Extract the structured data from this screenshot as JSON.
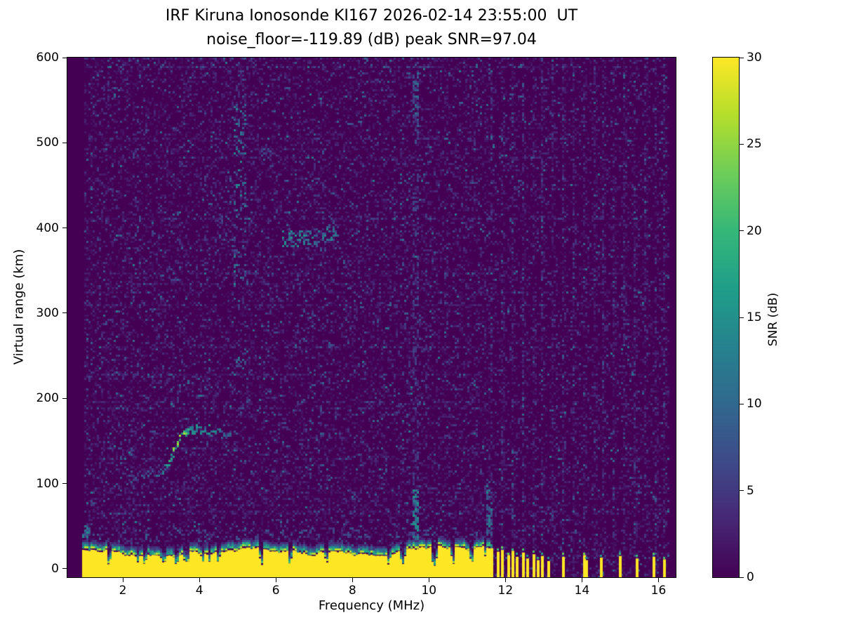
{
  "meta": {
    "station": "IRF Kiruna Ionosonde KI167",
    "timestamp_ut": "2026-02-14 23:55:00 UT",
    "noise_floor_db": -119.89,
    "peak_snr_db": 97.04
  },
  "chart_data": {
    "type": "heatmap",
    "title": "IRF Kiruna Ionosonde KI167 2026-02-14 23:55:00  UT",
    "subtitle": "noise_floor=-119.89 (dB) peak SNR=97.04",
    "xlabel": "Frequency (MHz)",
    "ylabel": "Virtual range (km)",
    "colorbar_label": "SNR (dB)",
    "colormap": "viridis",
    "x_axis": {
      "min": 0.55,
      "max": 16.45,
      "ticks": [
        2,
        4,
        6,
        8,
        10,
        12,
        14,
        16
      ]
    },
    "y_axis": {
      "min": -10,
      "max": 600,
      "ticks": [
        0,
        100,
        200,
        300,
        400,
        500,
        600
      ]
    },
    "colorbar": {
      "min": 0,
      "max": 30,
      "ticks": [
        0,
        5,
        10,
        15,
        20,
        25,
        30
      ]
    },
    "noise": {
      "f_start": 1.0,
      "f_end": 16.28,
      "base_fill_prob": 0.45,
      "sparse_after": 11.6,
      "sparse_fill_prob": 0.3
    },
    "ground_echo": {
      "f_start": 0.98,
      "f_end": 11.58,
      "solid_top_km": 22,
      "notches": [
        1.62,
        2.35,
        2.54,
        3.02,
        3.34,
        3.66,
        4.05,
        4.48,
        5.6,
        6.35,
        7.3,
        8.92,
        9.3,
        10.12,
        10.6,
        11.1
      ]
    },
    "rfi_columns": [
      11.66,
      11.92,
      12.19,
      12.45,
      12.72,
      12.98,
      13.25,
      13.51,
      13.78,
      14.04,
      14.31,
      14.57,
      14.84,
      15.1,
      15.37,
      15.63,
      15.9,
      16.16
    ],
    "rfi_stubs": [
      [
        11.66,
        24
      ],
      [
        11.79,
        20
      ],
      [
        11.92,
        22
      ],
      [
        12.05,
        16
      ],
      [
        12.18,
        21
      ],
      [
        12.31,
        14
      ],
      [
        12.44,
        19
      ],
      [
        12.58,
        12
      ],
      [
        12.71,
        17
      ],
      [
        12.85,
        10
      ],
      [
        12.98,
        15
      ],
      [
        13.11,
        9
      ],
      [
        13.51,
        14
      ],
      [
        14.04,
        16
      ],
      [
        14.12,
        10
      ],
      [
        14.47,
        13
      ],
      [
        14.97,
        15
      ],
      [
        15.44,
        12
      ],
      [
        15.86,
        14
      ],
      [
        16.12,
        11
      ]
    ],
    "trace": {
      "thickness_km": 5,
      "points": [
        [
          2.15,
          107,
          6
        ],
        [
          2.45,
          108,
          7
        ],
        [
          2.75,
          110,
          7
        ],
        [
          3.0,
          114,
          9
        ],
        [
          3.18,
          121,
          13
        ],
        [
          3.32,
          133,
          18
        ],
        [
          3.45,
          148,
          24
        ],
        [
          3.55,
          157,
          23
        ],
        [
          3.7,
          162,
          16
        ],
        [
          3.95,
          164,
          13
        ],
        [
          4.2,
          163,
          12
        ],
        [
          4.45,
          160,
          11
        ],
        [
          4.7,
          157,
          9
        ],
        [
          4.85,
          155,
          8
        ]
      ]
    },
    "patches": [
      {
        "f0": 4.95,
        "f1": 5.22,
        "r0": 335,
        "r1": 545,
        "density": 0.16,
        "s0": 4,
        "s1": 14
      },
      {
        "f0": 4.6,
        "f1": 4.95,
        "r0": 350,
        "r1": 430,
        "density": 0.07,
        "s0": 3,
        "s1": 9
      },
      {
        "f0": 4.15,
        "f1": 4.6,
        "r0": 340,
        "r1": 415,
        "density": 0.05,
        "s0": 3,
        "s1": 8
      },
      {
        "f0": 6.2,
        "f1": 7.05,
        "r0": 379,
        "r1": 395,
        "density": 0.35,
        "s0": 6,
        "s1": 16
      },
      {
        "f0": 7.05,
        "f1": 7.62,
        "r0": 384,
        "r1": 399,
        "density": 0.3,
        "s0": 6,
        "s1": 14
      },
      {
        "f0": 7.25,
        "f1": 7.62,
        "r0": 401,
        "r1": 423,
        "density": 0.12,
        "s0": 3,
        "s1": 9
      },
      {
        "f0": 8.0,
        "f1": 8.38,
        "r0": 386,
        "r1": 399,
        "density": 0.12,
        "s0": 3,
        "s1": 10
      },
      {
        "f0": 4.98,
        "f1": 5.18,
        "r0": 235,
        "r1": 248,
        "density": 0.3,
        "s0": 5,
        "s1": 12
      },
      {
        "f0": 3.25,
        "f1": 3.62,
        "r0": 338,
        "r1": 352,
        "density": 0.12,
        "s0": 3,
        "s1": 9
      },
      {
        "f0": 1.0,
        "f1": 11.58,
        "r0": 30,
        "r1": 48,
        "density": 0.1,
        "s0": 3,
        "s1": 9
      },
      {
        "f0": 11.52,
        "f1": 11.66,
        "r0": 25,
        "r1": 105,
        "density": 0.45,
        "s0": 5,
        "s1": 14
      },
      {
        "f0": 9.58,
        "f1": 9.72,
        "r0": 30,
        "r1": 92,
        "density": 0.6,
        "s0": 7,
        "s1": 16
      },
      {
        "f0": 9.6,
        "f1": 9.7,
        "r0": 92,
        "r1": 600,
        "density": 0.25,
        "s0": 2,
        "s1": 7
      },
      {
        "f0": 9.61,
        "f1": 9.69,
        "r0": 520,
        "r1": 598,
        "density": 0.45,
        "s0": 4,
        "s1": 11
      },
      {
        "f0": 5.0,
        "f1": 5.15,
        "r0": 545,
        "r1": 595,
        "density": 0.12,
        "s0": 3,
        "s1": 8
      },
      {
        "f0": 0.98,
        "f1": 1.12,
        "r0": 25,
        "r1": 50,
        "density": 0.5,
        "s0": 6,
        "s1": 16
      }
    ]
  }
}
